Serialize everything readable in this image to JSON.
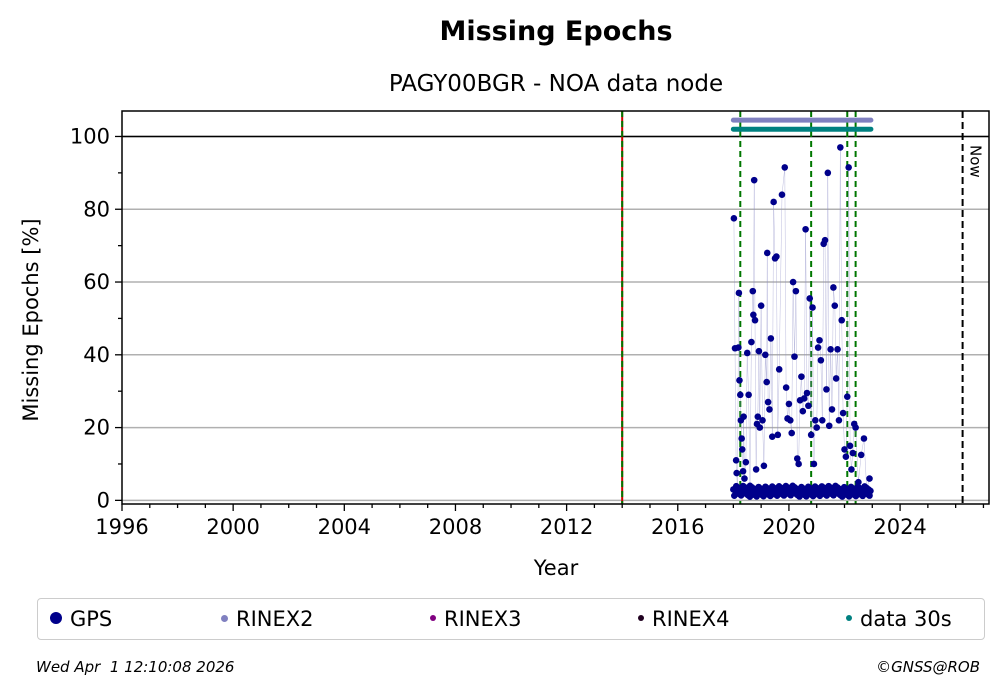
{
  "chart_data": {
    "type": "scatter",
    "title": "Missing Epochs",
    "subtitle": "PAGY00BGR - NOA data node",
    "xlabel": "Year",
    "ylabel": "Missing Epochs [%]",
    "xlim": [
      1996,
      2027.2
    ],
    "ylim": [
      -1,
      107
    ],
    "x_ticks": [
      1996,
      2000,
      2004,
      2008,
      2012,
      2016,
      2020,
      2024
    ],
    "y_ticks": [
      0,
      20,
      40,
      60,
      80,
      100
    ],
    "grid": "horizontal",
    "reference_line_y": 100,
    "now_line": {
      "x": 2026.25,
      "label": "Now"
    },
    "red_vertical_line_x": 2014.0,
    "green_dashed_lines_x": [
      2014.0,
      2018.25,
      2020.8,
      2022.1,
      2022.4
    ],
    "bars": [
      {
        "name": "RINEX2",
        "color": "#8080c0",
        "y": 104.5,
        "x_start": 2018.0,
        "x_end": 2022.95
      },
      {
        "name": "data 30s",
        "color": "#008080",
        "y": 102,
        "x_start": 2018.0,
        "x_end": 2022.95
      }
    ],
    "series": [
      {
        "name": "GPS",
        "color": "#00008b",
        "points": [
          [
            2018.02,
            77.5
          ],
          [
            2018.06,
            41.8
          ],
          [
            2018.1,
            11
          ],
          [
            2018.12,
            7.5
          ],
          [
            2018.15,
            3
          ],
          [
            2018.18,
            42
          ],
          [
            2018.2,
            57
          ],
          [
            2018.22,
            33
          ],
          [
            2018.25,
            29
          ],
          [
            2018.27,
            22
          ],
          [
            2018.3,
            17
          ],
          [
            2018.32,
            14
          ],
          [
            2018.35,
            8
          ],
          [
            2018.37,
            23
          ],
          [
            2018.4,
            6
          ],
          [
            2018.45,
            10.5
          ],
          [
            2018.5,
            40.5
          ],
          [
            2018.55,
            29
          ],
          [
            2018.6,
            4
          ],
          [
            2018.65,
            43.5
          ],
          [
            2018.7,
            57.5
          ],
          [
            2018.72,
            51
          ],
          [
            2018.75,
            88
          ],
          [
            2018.78,
            49.5
          ],
          [
            2018.82,
            8.5
          ],
          [
            2018.85,
            21
          ],
          [
            2018.88,
            23
          ],
          [
            2018.92,
            41
          ],
          [
            2018.95,
            20
          ],
          [
            2019.0,
            53.5
          ],
          [
            2019.05,
            22
          ],
          [
            2019.1,
            9.5
          ],
          [
            2019.15,
            40
          ],
          [
            2019.2,
            32.5
          ],
          [
            2019.22,
            68
          ],
          [
            2019.25,
            27
          ],
          [
            2019.3,
            25
          ],
          [
            2019.35,
            44.5
          ],
          [
            2019.4,
            17.5
          ],
          [
            2019.45,
            82
          ],
          [
            2019.5,
            66.5
          ],
          [
            2019.55,
            67
          ],
          [
            2019.6,
            18
          ],
          [
            2019.65,
            36
          ],
          [
            2019.75,
            84
          ],
          [
            2019.85,
            91.5
          ],
          [
            2019.9,
            31
          ],
          [
            2019.95,
            22.5
          ],
          [
            2020.0,
            26.5
          ],
          [
            2020.05,
            22
          ],
          [
            2020.1,
            18.5
          ],
          [
            2020.15,
            60
          ],
          [
            2020.2,
            39.5
          ],
          [
            2020.25,
            57.5
          ],
          [
            2020.3,
            11.5
          ],
          [
            2020.35,
            10
          ],
          [
            2020.4,
            27.5
          ],
          [
            2020.45,
            34
          ],
          [
            2020.5,
            24.5
          ],
          [
            2020.55,
            28
          ],
          [
            2020.6,
            74.5
          ],
          [
            2020.65,
            29.5
          ],
          [
            2020.7,
            26
          ],
          [
            2020.75,
            55.5
          ],
          [
            2020.8,
            18
          ],
          [
            2020.85,
            53
          ],
          [
            2020.9,
            10
          ],
          [
            2020.95,
            22
          ],
          [
            2021.0,
            20
          ],
          [
            2021.05,
            42
          ],
          [
            2021.1,
            44
          ],
          [
            2021.15,
            38.5
          ],
          [
            2021.2,
            22
          ],
          [
            2021.25,
            70.5
          ],
          [
            2021.3,
            71.5
          ],
          [
            2021.35,
            30.5
          ],
          [
            2021.4,
            90
          ],
          [
            2021.45,
            20.5
          ],
          [
            2021.5,
            41.5
          ],
          [
            2021.55,
            25
          ],
          [
            2021.6,
            58.5
          ],
          [
            2021.65,
            53.5
          ],
          [
            2021.7,
            33.5
          ],
          [
            2021.75,
            41.5
          ],
          [
            2021.8,
            22
          ],
          [
            2021.85,
            97
          ],
          [
            2021.9,
            49.5
          ],
          [
            2021.95,
            24
          ],
          [
            2022.0,
            14
          ],
          [
            2022.05,
            12
          ],
          [
            2022.1,
            28.5
          ],
          [
            2022.15,
            91.5
          ],
          [
            2022.2,
            15
          ],
          [
            2022.25,
            8.5
          ],
          [
            2022.3,
            13
          ],
          [
            2022.35,
            21
          ],
          [
            2022.4,
            20
          ],
          [
            2022.5,
            5
          ],
          [
            2022.6,
            12.5
          ],
          [
            2022.7,
            17
          ],
          [
            2022.8,
            3
          ],
          [
            2022.9,
            6
          ]
        ]
      }
    ],
    "legend": [
      {
        "label": "GPS",
        "color": "#00008b"
      },
      {
        "label": "RINEX2",
        "color": "#8080c0"
      },
      {
        "label": "RINEX3",
        "color": "#800080"
      },
      {
        "label": "RINEX4",
        "color": "#200020"
      },
      {
        "label": "data 30s",
        "color": "#008080"
      }
    ]
  },
  "footer": {
    "timestamp": "Wed Apr  1 12:10:08 2026",
    "copyright": "©GNSS@ROB"
  }
}
